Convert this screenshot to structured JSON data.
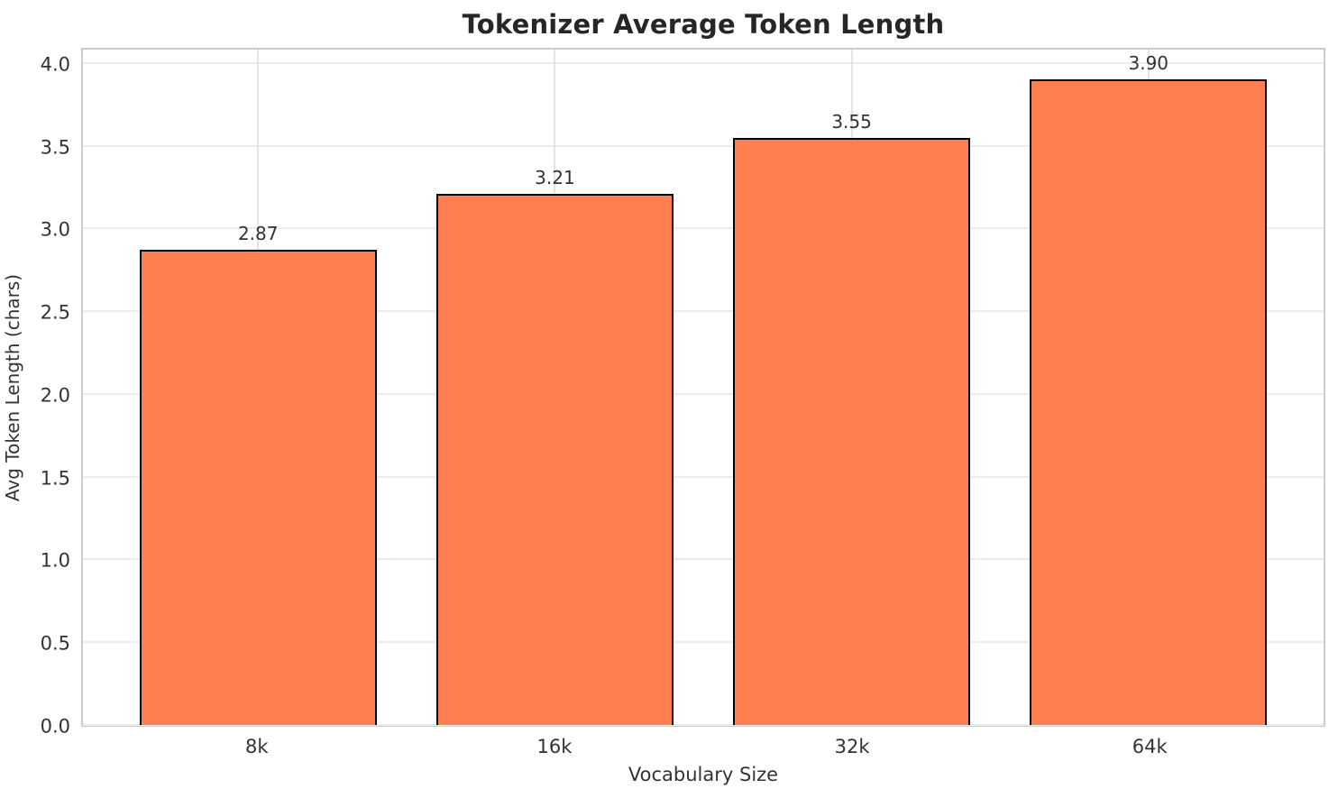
{
  "chart_data": {
    "type": "bar",
    "title": "Tokenizer Average Token Length",
    "xlabel": "Vocabulary Size",
    "ylabel": "Avg Token Length (chars)",
    "categories": [
      "8k",
      "16k",
      "32k",
      "64k"
    ],
    "values": [
      2.87,
      3.21,
      3.55,
      3.9
    ],
    "bar_labels": [
      "2.87",
      "3.21",
      "3.55",
      "3.90"
    ],
    "ytick_labels": [
      "0.0",
      "0.5",
      "1.0",
      "1.5",
      "2.0",
      "2.5",
      "3.0",
      "3.5",
      "4.0"
    ],
    "ytick_values": [
      0,
      0.5,
      1,
      1.5,
      2,
      2.5,
      3,
      3.5,
      4
    ],
    "ylim": [
      0,
      4.103
    ],
    "xlim": [
      -0.59,
      3.59
    ],
    "bar_width_units": 0.8,
    "grid": true,
    "legend_position": "none",
    "colors": {
      "bar_fill": "#FF7F50",
      "bar_edge": "#000000",
      "grid": "#ececec",
      "spine": "#cccccc",
      "tick_text": "#333333",
      "title_text": "#262626"
    }
  }
}
